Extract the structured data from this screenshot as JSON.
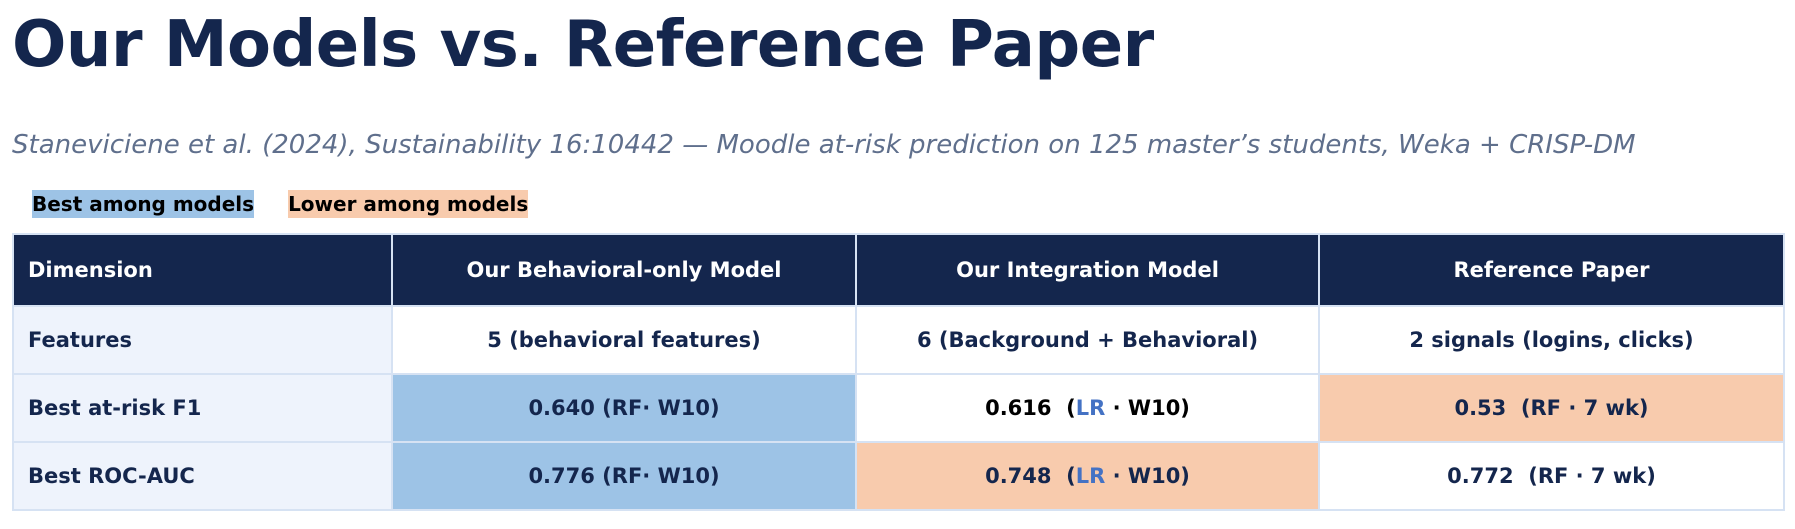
{
  "header": {
    "title": "Our Models vs. Reference Paper",
    "subtitle": "Staneviciene et al. (2024), Sustainability 16:10442 — Moodle at-risk prediction on 125 master’s students, Weka + CRISP-DM"
  },
  "legend": [
    {
      "label": "Best among models",
      "status": "best"
    },
    {
      "label": "Lower among models",
      "status": "lower"
    }
  ],
  "colors": {
    "best": "#9dc3e6",
    "lower": "#f8cbad",
    "header": "#14264d",
    "label_cell": "#eef3fc",
    "accent": "#4472c4"
  },
  "table": {
    "columns": [
      "Dimension",
      "Our Behavioral-only Model",
      "Our Integration Model",
      "Reference Paper"
    ],
    "rows": [
      {
        "label": "Features",
        "cells": [
          {
            "segments": [
              "5 (behavioral features)"
            ]
          },
          {
            "segments": [
              "6 (Background + Behavioral)"
            ]
          },
          {
            "segments": [
              "2 signals (logins, clicks)"
            ]
          }
        ]
      },
      {
        "label": "Best at-risk F1",
        "cells": [
          {
            "segments": [
              "0.640 (RF· W10)"
            ],
            "status": "best"
          },
          {
            "segments": [
              "0.616  (",
              "LR",
              " · W10)"
            ],
            "accent": 1
          },
          {
            "segments": [
              "0.53  (RF · 7 wk)"
            ],
            "status": "lower"
          }
        ]
      },
      {
        "label": "Best ROC-AUC",
        "cells": [
          {
            "segments": [
              "0.776 (RF· W10)"
            ],
            "status": "best"
          },
          {
            "segments": [
              "0.748  (",
              "LR",
              " · W10)"
            ],
            "status": "lower",
            "accent": 1
          },
          {
            "segments": [
              "0.772  (RF · 7 wk)"
            ]
          }
        ]
      }
    ]
  }
}
